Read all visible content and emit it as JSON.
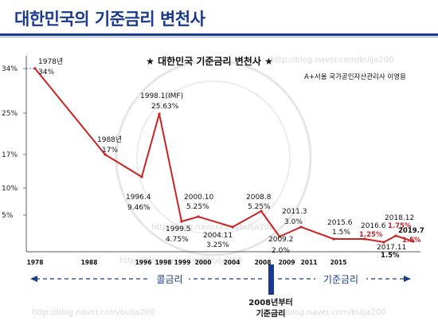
{
  "page_title": "대한민국의 기준금리 변천사",
  "chart_data": {
    "type": "line",
    "title": "★ 대한민국 기준금리 변천사 ★",
    "source": "A+서울 국가공인자산관리사 이영용",
    "xlabel": "",
    "ylabel": "",
    "series_color": "#cc2222",
    "y_ticks": [
      "34%",
      "25%",
      "17%",
      "10%",
      "5%"
    ],
    "x_ticks": [
      "1978",
      "1988",
      "1996",
      "1998",
      "1999",
      "2000",
      "2004",
      "2008",
      "2009",
      "2011",
      "2015"
    ],
    "points": [
      {
        "year": "1978",
        "value": 34.0,
        "label_year": "1978년",
        "label_value": "34%"
      },
      {
        "year": "1988",
        "value": 17.0,
        "label_year": "1988년",
        "label_value": "17%"
      },
      {
        "year": "1996.4",
        "value": 9.46,
        "label_year": "1996.4",
        "label_value": "9.46%"
      },
      {
        "year": "1998.1",
        "value": 25.63,
        "label_year": "1998.1(IMF)",
        "label_value": "25.63%"
      },
      {
        "year": "1999.5",
        "value": 4.75,
        "label_year": "1999.5",
        "label_value": "4.75%"
      },
      {
        "year": "2000.10",
        "value": 5.25,
        "label_year": "2000.10",
        "label_value": "5.25%"
      },
      {
        "year": "2004.11",
        "value": 3.25,
        "label_year": "2004.11",
        "label_value": "3.25%"
      },
      {
        "year": "2008.8",
        "value": 5.25,
        "label_year": "2008.8",
        "label_value": "5.25%"
      },
      {
        "year": "2009.2",
        "value": 2.0,
        "label_year": "2009.2",
        "label_value": "2.0%"
      },
      {
        "year": "2011.3",
        "value": 3.0,
        "label_year": "2011.3",
        "label_value": "3.0%"
      },
      {
        "year": "2015.6",
        "value": 1.5,
        "label_year": "2015.6",
        "label_value": "1.5%"
      },
      {
        "year": "2016.6",
        "value": 1.25,
        "label_year": "2016.6",
        "label_value": "1.25%"
      },
      {
        "year": "2017.11",
        "value": 1.5,
        "label_year": "2017.11",
        "label_value": "1.5%"
      },
      {
        "year": "2018.12",
        "value": 1.75,
        "label_year": "2018.12",
        "label_value": "1.75%"
      },
      {
        "year": "2019.7",
        "value": 1.5,
        "label_year": "2019.7",
        "label_value": "1.5%"
      }
    ],
    "eras": {
      "left": "콜금리",
      "right": "기준금리"
    },
    "note": [
      "2008년부터",
      "기준금리"
    ]
  },
  "watermark": "http://blog.naver.com/bulja200"
}
